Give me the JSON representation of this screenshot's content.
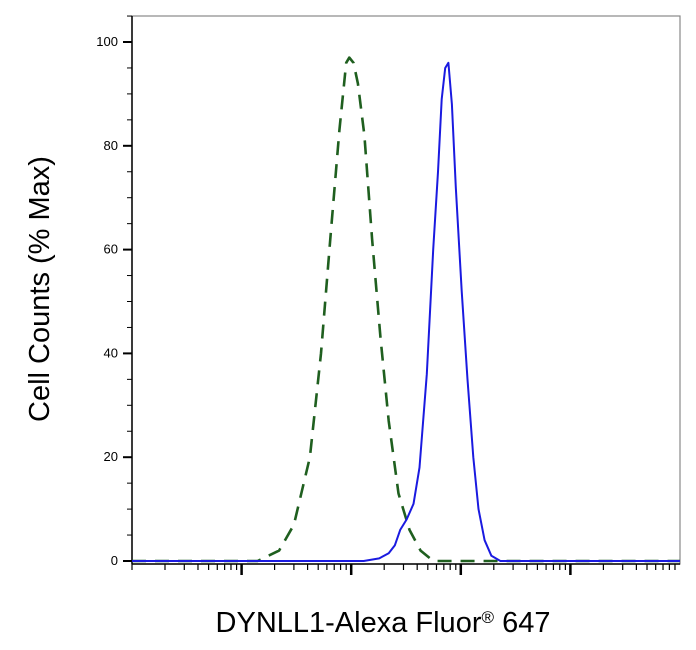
{
  "chart_data": {
    "type": "line",
    "title": "",
    "xlabel": "DYNLL1-Alexa Fluor",
    "xlabel_superscript": "®",
    "xlabel_suffix": " 647",
    "ylabel": "Cell Counts (% Max)",
    "x_scale": "log",
    "xlim": [
      10,
      1000000
    ],
    "ylim": [
      0,
      100
    ],
    "y_ticks": [
      0,
      20,
      40,
      60,
      80,
      100
    ],
    "y_tick_labels": [
      "0",
      "20",
      "40",
      "60",
      "80",
      "100"
    ],
    "x_major_ticks": [
      100,
      1000,
      10000,
      100000
    ],
    "grid": false,
    "legend": "none",
    "series": [
      {
        "style": "dashed",
        "color": "#1f5f1f",
        "points": [
          [
            10,
            0
          ],
          [
            60,
            0
          ],
          [
            140,
            0
          ],
          [
            220,
            2
          ],
          [
            300,
            7
          ],
          [
            420,
            20
          ],
          [
            530,
            40
          ],
          [
            650,
            63
          ],
          [
            780,
            83
          ],
          [
            900,
            96
          ],
          [
            960,
            97
          ],
          [
            1050,
            96
          ],
          [
            1150,
            92
          ],
          [
            1320,
            82
          ],
          [
            1550,
            62
          ],
          [
            1850,
            43
          ],
          [
            2200,
            27
          ],
          [
            2700,
            13
          ],
          [
            3400,
            6
          ],
          [
            4300,
            2
          ],
          [
            5600,
            0
          ],
          [
            8000,
            0
          ],
          [
            30000,
            0
          ],
          [
            1000000,
            0
          ]
        ]
      },
      {
        "style": "solid",
        "color": "#1a1ae0",
        "points": [
          [
            10,
            0
          ],
          [
            500,
            0
          ],
          [
            1300,
            0
          ],
          [
            1800,
            0.5
          ],
          [
            2200,
            1.5
          ],
          [
            2500,
            3
          ],
          [
            2800,
            6
          ],
          [
            3200,
            8
          ],
          [
            3700,
            11
          ],
          [
            4200,
            18
          ],
          [
            4900,
            36
          ],
          [
            5600,
            60
          ],
          [
            6200,
            75
          ],
          [
            6700,
            89
          ],
          [
            7200,
            95
          ],
          [
            7700,
            96
          ],
          [
            8300,
            88
          ],
          [
            9000,
            72
          ],
          [
            10200,
            52
          ],
          [
            11500,
            35
          ],
          [
            13000,
            20
          ],
          [
            14500,
            10
          ],
          [
            16500,
            4
          ],
          [
            19000,
            1
          ],
          [
            23000,
            0
          ],
          [
            40000,
            0
          ],
          [
            1000000,
            0
          ]
        ]
      }
    ]
  }
}
